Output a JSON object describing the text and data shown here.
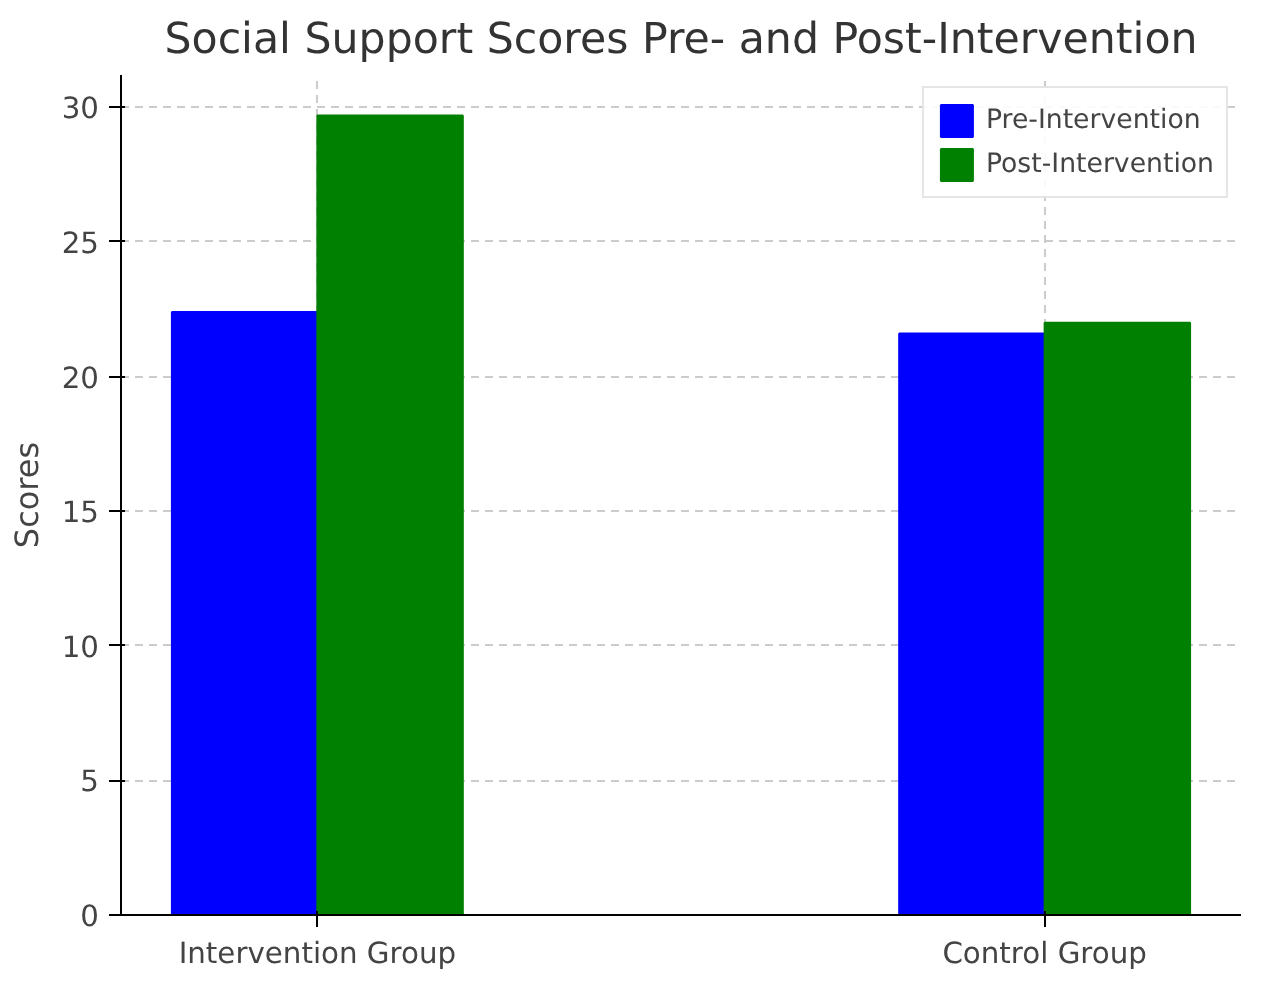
{
  "chart_data": {
    "type": "bar",
    "title": "Social Support Scores Pre- and Post-Intervention",
    "ylabel": "Scores",
    "categories": [
      "Intervention Group",
      "Control Group"
    ],
    "series": [
      {
        "name": "Pre-Intervention",
        "color": "#0000ff",
        "values": [
          22.4,
          21.6
        ]
      },
      {
        "name": "Post-Intervention",
        "color": "#008000",
        "values": [
          29.7,
          22.0
        ]
      }
    ],
    "ylim": [
      0,
      31.2
    ],
    "yticks": [
      0,
      5,
      10,
      15,
      20,
      25,
      30
    ],
    "grid": true,
    "legend": "top right"
  }
}
